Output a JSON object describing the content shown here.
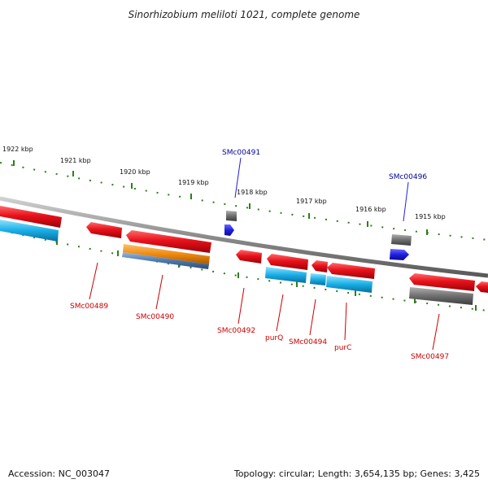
{
  "title": "Sinorhizobium meliloti 1021, complete genome",
  "footer": {
    "accession": "Accession: NC_003047",
    "topology": "Topology: circular; Length: 3,654,135 bp; Genes: 3,425"
  },
  "colors": {
    "backbone": "#8a8a8a",
    "ruler": "#2e7d1e",
    "gene_red": "#e8121b",
    "gene_blue": "#1f1fe0",
    "gene_gray": "#6e6e6e",
    "feature_cyan": "#18aee6",
    "feature_orange": "#f08a10",
    "feature_steel": "#4f79ad",
    "label_red": "#cc0000",
    "label_blue": "#000099"
  },
  "kbp_labels": [
    "1922 kbp",
    "1921 kbp",
    "1920 kbp",
    "1919 kbp",
    "1918 kbp",
    "1917 kbp",
    "1916 kbp",
    "1915 kbp"
  ],
  "gene_labels": [
    {
      "name": "SMc00491",
      "strand": "plus"
    },
    {
      "name": "SMc00496",
      "strand": "plus"
    },
    {
      "name": "SMc00489",
      "strand": "minus"
    },
    {
      "name": "SMc00490",
      "strand": "minus"
    },
    {
      "name": "SMc00492",
      "strand": "minus"
    },
    {
      "name": "purQ",
      "strand": "minus"
    },
    {
      "name": "SMc00494",
      "strand": "minus"
    },
    {
      "name": "purC",
      "strand": "minus"
    },
    {
      "name": "SMc00497",
      "strand": "minus"
    }
  ]
}
